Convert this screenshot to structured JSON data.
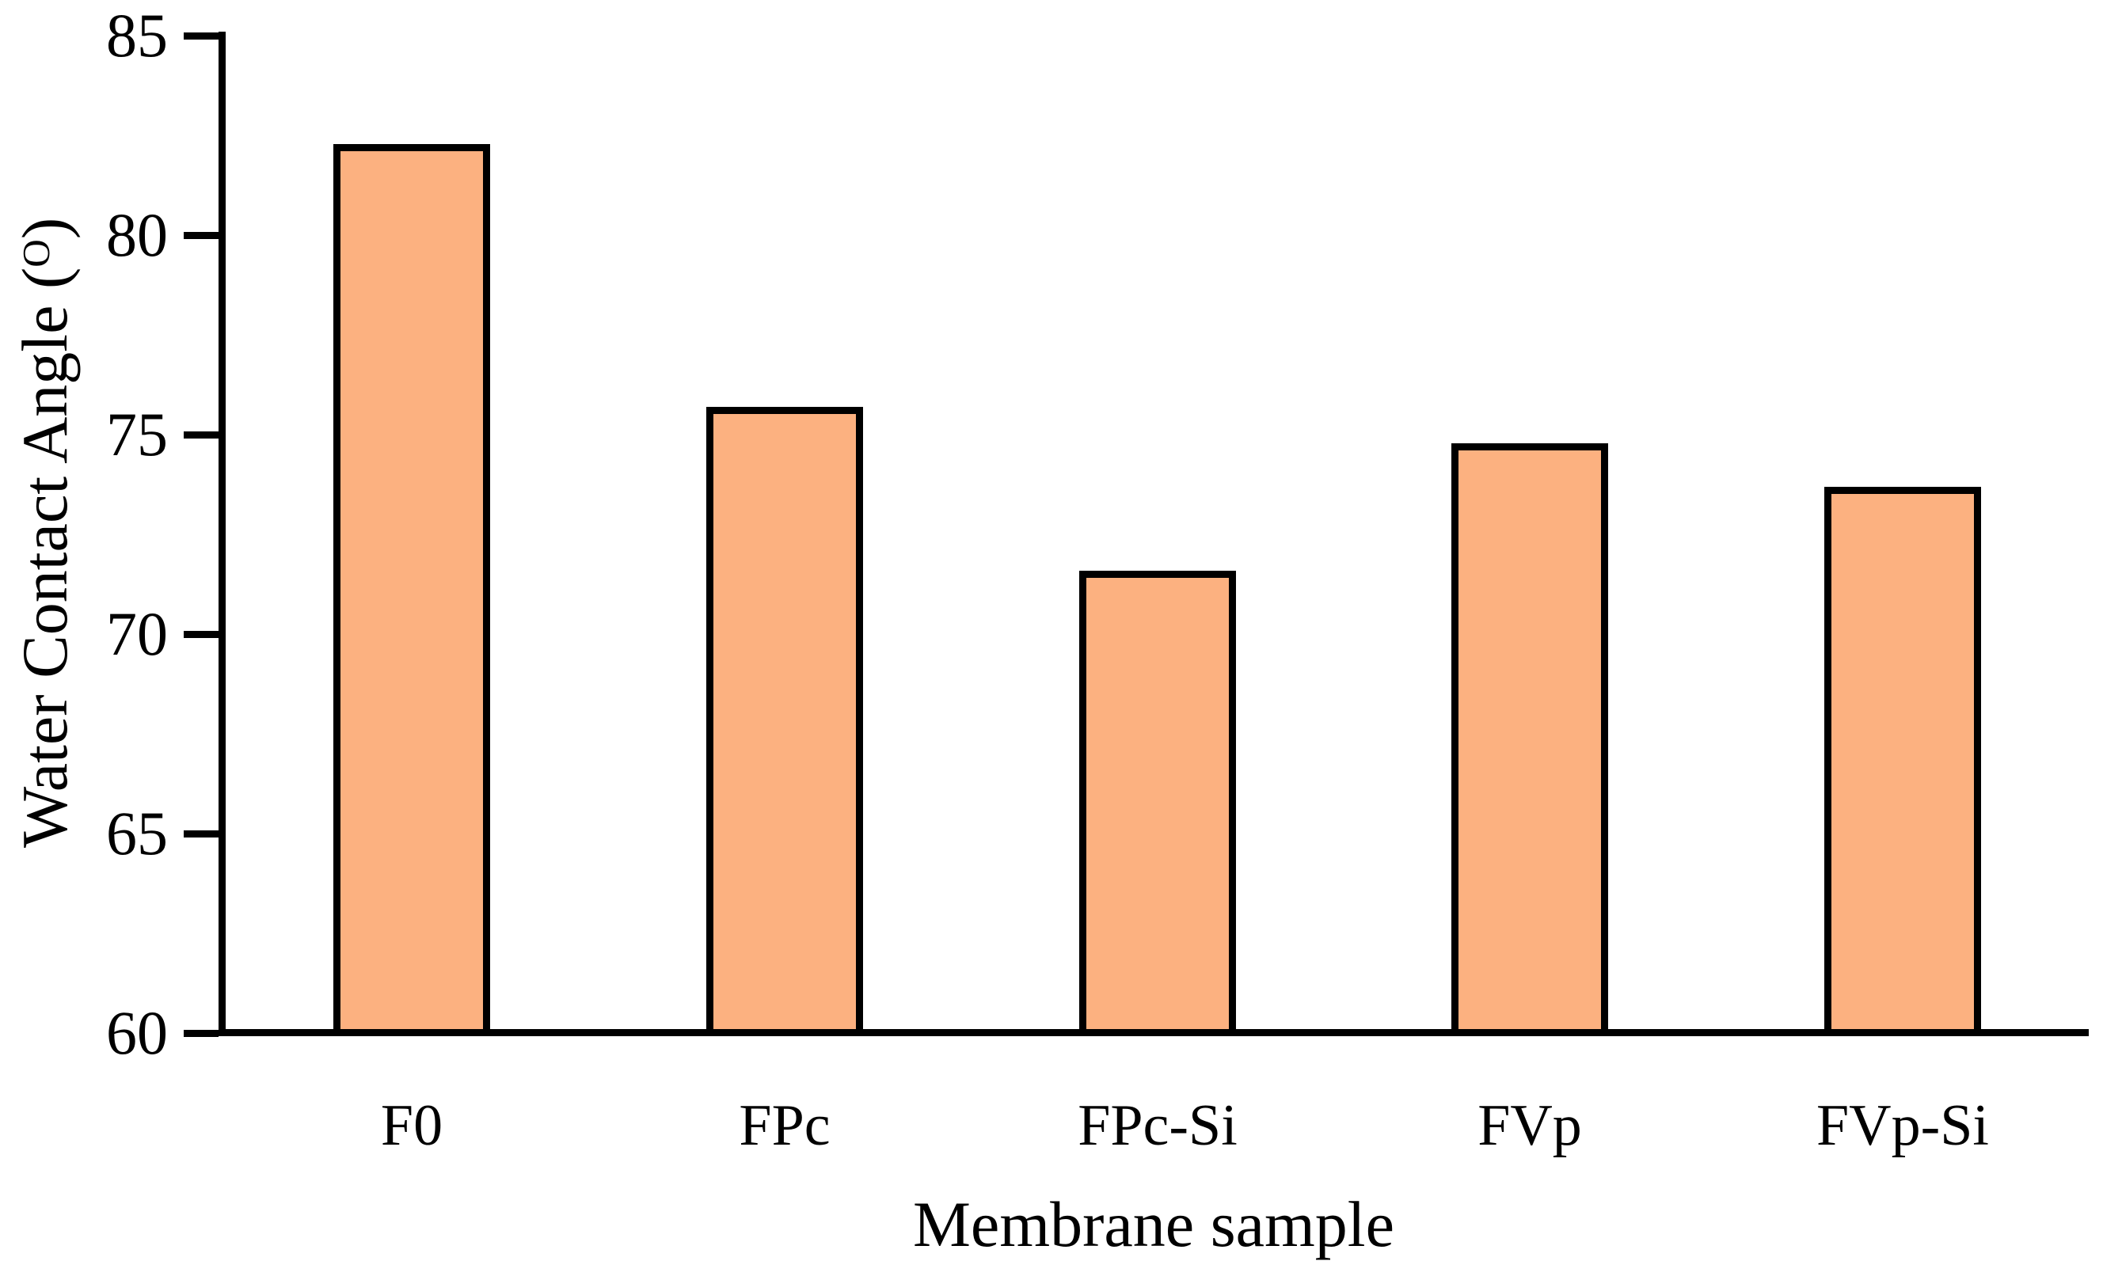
{
  "chart_data": {
    "type": "bar",
    "categories": [
      "F0",
      "FPc",
      "FPc-Si",
      "FVp",
      "FVp-Si"
    ],
    "values": [
      82.2,
      75.6,
      71.5,
      74.7,
      73.6
    ],
    "xlabel": "Membrane sample",
    "ylabel": "Water Contact Angle (O)",
    "ylabel_parts": {
      "prefix": "Water Contact Angle (",
      "sup_unit": "O",
      "suffix": ")"
    },
    "ylim": [
      60,
      85
    ],
    "yticks": [
      60,
      65,
      70,
      75,
      80,
      85
    ],
    "grid": false,
    "legend": false,
    "bar_fill": "#FCB180",
    "bar_edge": "#000000",
    "axis_color": "#000000",
    "background": "#FFFFFF"
  }
}
